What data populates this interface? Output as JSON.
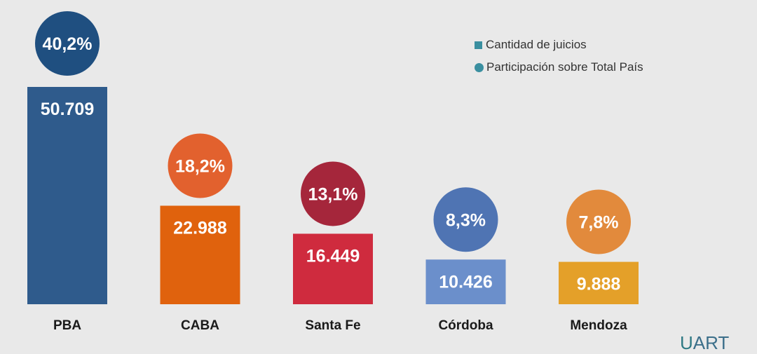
{
  "chart_data": {
    "type": "bar",
    "categories": [
      "PBA",
      "CABA",
      "Santa Fe",
      "Córdoba",
      "Mendoza"
    ],
    "series": [
      {
        "name": "Cantidad de juicios",
        "values": [
          50709,
          22988,
          16449,
          10426,
          9888
        ],
        "labels": [
          "50.709",
          "22.988",
          "16.449",
          "10.426",
          "9.888"
        ]
      },
      {
        "name": "Participación sobre Total País",
        "values": [
          40.2,
          18.2,
          13.1,
          8.3,
          7.8
        ],
        "labels": [
          "40,2%",
          "18,2%",
          "13,1%",
          "8,3%",
          "7,8%"
        ]
      }
    ],
    "bar_colors": [
      "#2f5b8c",
      "#e0620d",
      "#cf2b3e",
      "#6b8fcb",
      "#e4a029"
    ],
    "circle_colors": [
      "#1f4f80",
      "#e2612e",
      "#a5263b",
      "#4f74b3",
      "#e28a3c"
    ],
    "legend_position": "top-right",
    "grid": false
  },
  "legend": {
    "bar_label": "Cantidad de juicios",
    "circle_label": "Participación sobre Total País",
    "color": "#3a8fa0"
  },
  "logo": {
    "u": "U",
    "rest": "ART"
  }
}
